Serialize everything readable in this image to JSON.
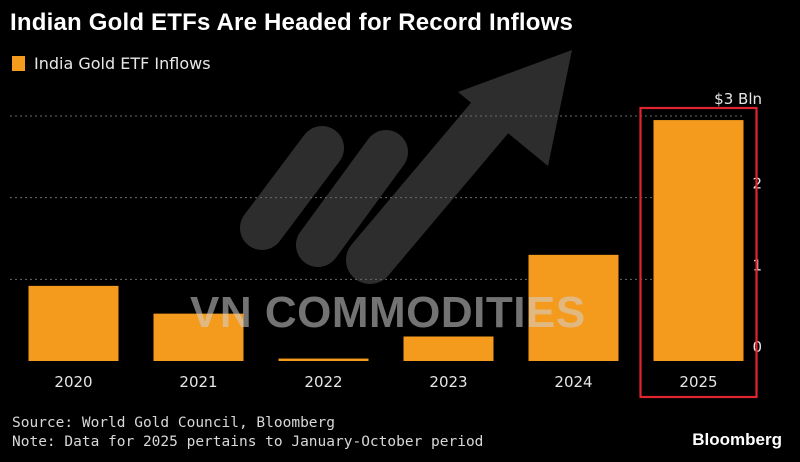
{
  "chart_data": {
    "type": "bar",
    "title": "Indian Gold ETFs Are Headed for Record Inflows",
    "legend": [
      "India Gold ETF Inflows"
    ],
    "categories": [
      "2020",
      "2021",
      "2022",
      "2023",
      "2024",
      "2025"
    ],
    "series": [
      {
        "name": "India Gold ETF Inflows",
        "values": [
          0.92,
          0.58,
          0.03,
          0.3,
          1.3,
          2.95
        ]
      }
    ],
    "y_ticks": [
      "0",
      "1",
      "2",
      "$3 Bln"
    ],
    "y_tick_values": [
      0,
      1,
      2,
      3
    ],
    "ylim": [
      0,
      3
    ],
    "xlabel": "",
    "ylabel": "",
    "highlighted_category": "2025",
    "grid": true,
    "legend_position": "top-left"
  },
  "colors": {
    "bar": "#f49a1d",
    "highlight": "#e02430",
    "grid": "#6a6a6a",
    "background": "#000000"
  },
  "footer": {
    "source": "Source: World Gold Council, Bloomberg",
    "note": "Note: Data for 2025 pertains to January-October period"
  },
  "brand": "Bloomberg",
  "watermark": "VN COMMODITIES"
}
